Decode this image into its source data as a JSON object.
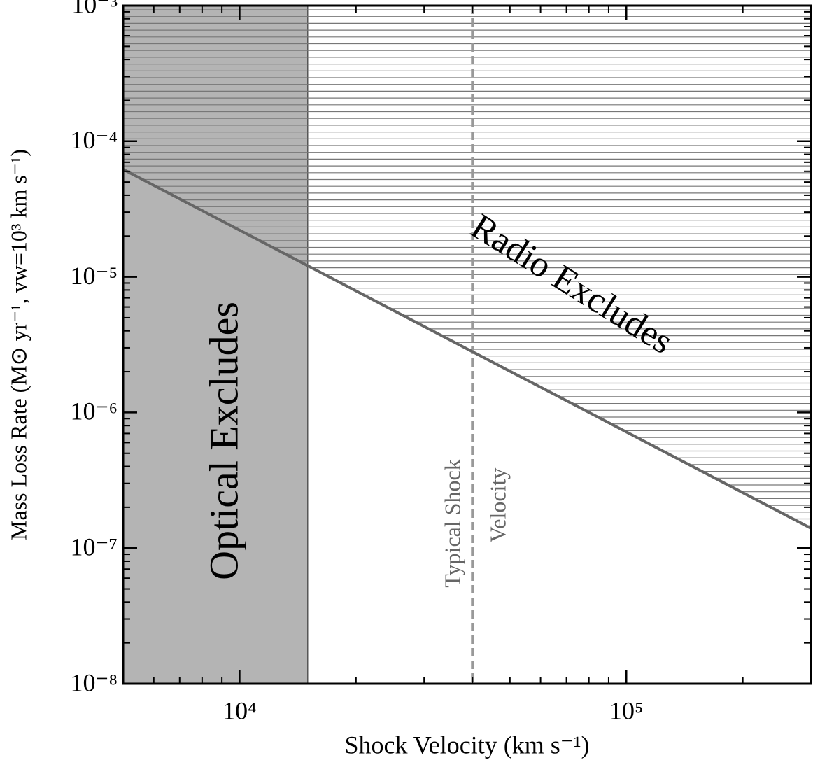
{
  "chart_data": {
    "type": "line",
    "xlabel": "Shock Velocity (km s⁻¹)",
    "ylabel": "Mass Loss Rate (M⊙ yr⁻¹, vw=10³ km s⁻¹)",
    "log_x": true,
    "log_y": true,
    "xlim": [
      5000,
      300000
    ],
    "ylim": [
      1e-08,
      0.001
    ],
    "xticks": [
      {
        "value": 10000,
        "label": "10⁴"
      },
      {
        "value": 100000,
        "label": "10⁵"
      }
    ],
    "x_minor_ticks": [
      6000,
      7000,
      8000,
      9000,
      20000,
      30000,
      40000,
      50000,
      60000,
      70000,
      80000,
      90000,
      200000,
      300000
    ],
    "yticks": [
      {
        "value": 1e-08,
        "label": "10⁻⁸"
      },
      {
        "value": 1e-07,
        "label": "10⁻⁷"
      },
      {
        "value": 1e-06,
        "label": "10⁻⁶"
      },
      {
        "value": 1e-05,
        "label": "10⁻⁵"
      },
      {
        "value": 0.0001,
        "label": "10⁻⁴"
      },
      {
        "value": 0.001,
        "label": "10⁻³"
      }
    ],
    "y_minor_ticks": [
      2e-08,
      3e-08,
      4e-08,
      5e-08,
      6e-08,
      7e-08,
      8e-08,
      9e-08,
      2e-07,
      3e-07,
      4e-07,
      5e-07,
      6e-07,
      7e-07,
      8e-07,
      9e-07,
      2e-06,
      3e-06,
      4e-06,
      5e-06,
      6e-06,
      7e-06,
      8e-06,
      9e-06,
      2e-05,
      3e-05,
      4e-05,
      5e-05,
      6e-05,
      7e-05,
      8e-05,
      9e-05,
      0.0002,
      0.0003,
      0.0004,
      0.0005,
      0.0006,
      0.0007,
      0.0008,
      0.0009
    ],
    "series": [
      {
        "color": "#666666",
        "x": [
          5000,
          300000
        ],
        "values": [
          6.2e-05,
          1.4e-07
        ]
      }
    ],
    "optical_region": {
      "label": "Optical Excludes",
      "x_max": 15000,
      "color": "#b4b4b4"
    },
    "radio_region": {
      "label": "Radio Excludes",
      "hatch_color": "#777777"
    },
    "typical_velocity": {
      "x": 40000,
      "label_lines": [
        "Typical Shock",
        "Velocity"
      ],
      "color": "#999999"
    }
  }
}
